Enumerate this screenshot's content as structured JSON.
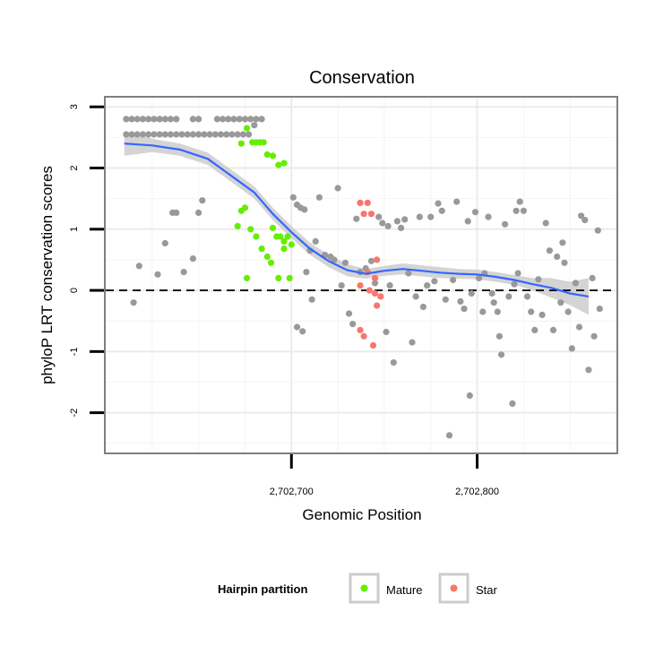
{
  "chart_data": {
    "type": "scatter",
    "title": "Conservation",
    "xlabel": "Genomic Position",
    "ylabel": "phyloP LRT conservation scores",
    "xlim": [
      2702600,
      2702875
    ],
    "ylim": [
      -2.65,
      3.15
    ],
    "xticks": [
      {
        "value": 2702700,
        "label": "2,702,700"
      },
      {
        "value": 2702800,
        "label": "2,702,800"
      }
    ],
    "yticks": [
      {
        "value": -2,
        "label": "-2"
      },
      {
        "value": -1,
        "label": "-1"
      },
      {
        "value": 0,
        "label": "0"
      },
      {
        "value": 1,
        "label": "1"
      },
      {
        "value": 2,
        "label": "2"
      },
      {
        "value": 3,
        "label": "3"
      }
    ],
    "reference_line": {
      "y": 0,
      "style": "dashed",
      "color": "#000000"
    },
    "grid": true,
    "legend": {
      "title": "Hairpin partition",
      "placement": "bottom",
      "entries": [
        {
          "label": "Mature",
          "color": "#66ee00"
        },
        {
          "label": "Star",
          "color": "#f8766d"
        }
      ]
    },
    "smooth_line": {
      "color": "#3366ff",
      "band_color": "#cccccc",
      "points": [
        [
          2702610,
          2.4
        ],
        [
          2702625,
          2.37
        ],
        [
          2702640,
          2.3
        ],
        [
          2702655,
          2.15
        ],
        [
          2702670,
          1.82
        ],
        [
          2702680,
          1.6
        ],
        [
          2702690,
          1.25
        ],
        [
          2702700,
          0.95
        ],
        [
          2702710,
          0.68
        ],
        [
          2702720,
          0.48
        ],
        [
          2702730,
          0.33
        ],
        [
          2702740,
          0.27
        ],
        [
          2702750,
          0.32
        ],
        [
          2702760,
          0.35
        ],
        [
          2702770,
          0.32
        ],
        [
          2702780,
          0.29
        ],
        [
          2702790,
          0.27
        ],
        [
          2702800,
          0.26
        ],
        [
          2702810,
          0.22
        ],
        [
          2702820,
          0.17
        ],
        [
          2702830,
          0.1
        ],
        [
          2702840,
          0.04
        ],
        [
          2702850,
          -0.05
        ],
        [
          2702860,
          -0.1
        ]
      ],
      "band_upper": [
        2.6,
        2.48,
        2.4,
        2.25,
        1.92,
        1.7,
        1.35,
        1.05,
        0.78,
        0.58,
        0.43,
        0.35,
        0.4,
        0.44,
        0.41,
        0.38,
        0.35,
        0.34,
        0.3,
        0.25,
        0.2,
        0.2,
        0.14,
        0.2
      ],
      "band_lower": [
        2.2,
        2.26,
        2.2,
        2.05,
        1.72,
        1.5,
        1.15,
        0.85,
        0.58,
        0.38,
        0.23,
        0.19,
        0.24,
        0.26,
        0.23,
        0.2,
        0.19,
        0.18,
        0.14,
        0.09,
        0.0,
        -0.12,
        -0.24,
        -0.4
      ]
    },
    "series": [
      {
        "name": "",
        "color": "#999999",
        "points": [
          [
            2702611,
            2.8
          ],
          [
            2702614,
            2.8
          ],
          [
            2702617,
            2.8
          ],
          [
            2702620,
            2.8
          ],
          [
            2702623,
            2.8
          ],
          [
            2702626,
            2.8
          ],
          [
            2702629,
            2.8
          ],
          [
            2702632,
            2.8
          ],
          [
            2702635,
            2.8
          ],
          [
            2702638,
            2.8
          ],
          [
            2702647,
            2.8
          ],
          [
            2702650,
            2.8
          ],
          [
            2702660,
            2.8
          ],
          [
            2702663,
            2.8
          ],
          [
            2702666,
            2.8
          ],
          [
            2702669,
            2.8
          ],
          [
            2702672,
            2.8
          ],
          [
            2702675,
            2.8
          ],
          [
            2702678,
            2.8
          ],
          [
            2702681,
            2.8
          ],
          [
            2702684,
            2.8
          ],
          [
            2702611,
            2.55
          ],
          [
            2702614,
            2.55
          ],
          [
            2702617,
            2.55
          ],
          [
            2702620,
            2.55
          ],
          [
            2702623,
            2.55
          ],
          [
            2702626,
            2.55
          ],
          [
            2702629,
            2.55
          ],
          [
            2702632,
            2.55
          ],
          [
            2702635,
            2.55
          ],
          [
            2702638,
            2.55
          ],
          [
            2702641,
            2.55
          ],
          [
            2702644,
            2.55
          ],
          [
            2702647,
            2.55
          ],
          [
            2702650,
            2.55
          ],
          [
            2702653,
            2.55
          ],
          [
            2702656,
            2.55
          ],
          [
            2702659,
            2.55
          ],
          [
            2702662,
            2.55
          ],
          [
            2702665,
            2.55
          ],
          [
            2702668,
            2.55
          ],
          [
            2702671,
            2.55
          ],
          [
            2702674,
            2.55
          ],
          [
            2702677,
            2.55
          ],
          [
            2702680,
            2.7
          ],
          [
            2702615,
            -0.2
          ],
          [
            2702618,
            0.4
          ],
          [
            2702628,
            0.26
          ],
          [
            2702632,
            0.77
          ],
          [
            2702636,
            1.27
          ],
          [
            2702638,
            1.27
          ],
          [
            2702642,
            0.3
          ],
          [
            2702647,
            0.52
          ],
          [
            2702650,
            1.27
          ],
          [
            2702652,
            1.47
          ],
          [
            2702701,
            1.52
          ],
          [
            2702703,
            1.4
          ],
          [
            2702705,
            1.35
          ],
          [
            2702707,
            1.32
          ],
          [
            2702708,
            0.3
          ],
          [
            2702710,
            0.65
          ],
          [
            2702711,
            -0.15
          ],
          [
            2702703,
            -0.6
          ],
          [
            2702706,
            -0.67
          ],
          [
            2702713,
            0.8
          ],
          [
            2702715,
            1.52
          ],
          [
            2702718,
            0.58
          ],
          [
            2702721,
            0.55
          ],
          [
            2702723,
            0.5
          ],
          [
            2702725,
            1.67
          ],
          [
            2702727,
            0.08
          ],
          [
            2702729,
            0.45
          ],
          [
            2702731,
            -0.38
          ],
          [
            2702733,
            -0.55
          ],
          [
            2702735,
            1.17
          ],
          [
            2702737,
            0.3
          ],
          [
            2702740,
            0.36
          ],
          [
            2702743,
            0.48
          ],
          [
            2702745,
            0.12
          ],
          [
            2702747,
            1.2
          ],
          [
            2702749,
            1.1
          ],
          [
            2702751,
            -0.68
          ],
          [
            2702752,
            1.05
          ],
          [
            2702753,
            0.08
          ],
          [
            2702755,
            -1.18
          ],
          [
            2702757,
            1.13
          ],
          [
            2702759,
            1.02
          ],
          [
            2702761,
            1.16
          ],
          [
            2702763,
            0.28
          ],
          [
            2702765,
            -0.85
          ],
          [
            2702767,
            -0.1
          ],
          [
            2702769,
            1.2
          ],
          [
            2702771,
            -0.27
          ],
          [
            2702773,
            0.08
          ],
          [
            2702775,
            1.2
          ],
          [
            2702777,
            0.15
          ],
          [
            2702779,
            1.42
          ],
          [
            2702781,
            1.3
          ],
          [
            2702783,
            -0.15
          ],
          [
            2702785,
            -2.37
          ],
          [
            2702787,
            0.17
          ],
          [
            2702789,
            1.45
          ],
          [
            2702791,
            -0.18
          ],
          [
            2702793,
            -0.3
          ],
          [
            2702795,
            1.13
          ],
          [
            2702796,
            -1.72
          ],
          [
            2702797,
            -0.05
          ],
          [
            2702799,
            1.28
          ],
          [
            2702801,
            0.2
          ],
          [
            2702803,
            -0.35
          ],
          [
            2702804,
            0.28
          ],
          [
            2702806,
            1.2
          ],
          [
            2702808,
            -0.05
          ],
          [
            2702809,
            -0.2
          ],
          [
            2702811,
            -0.35
          ],
          [
            2702812,
            -0.75
          ],
          [
            2702813,
            -1.05
          ],
          [
            2702815,
            1.08
          ],
          [
            2702817,
            -0.1
          ],
          [
            2702819,
            -1.85
          ],
          [
            2702820,
            0.1
          ],
          [
            2702821,
            1.3
          ],
          [
            2702822,
            0.28
          ],
          [
            2702823,
            1.45
          ],
          [
            2702825,
            1.3
          ],
          [
            2702827,
            -0.1
          ],
          [
            2702829,
            -0.35
          ],
          [
            2702831,
            -0.65
          ],
          [
            2702833,
            0.18
          ],
          [
            2702835,
            -0.4
          ],
          [
            2702837,
            1.1
          ],
          [
            2702839,
            0.65
          ],
          [
            2702841,
            -0.65
          ],
          [
            2702843,
            0.55
          ],
          [
            2702845,
            -0.2
          ],
          [
            2702846,
            0.78
          ],
          [
            2702847,
            0.45
          ],
          [
            2702849,
            -0.35
          ],
          [
            2702851,
            -0.95
          ],
          [
            2702853,
            0.12
          ],
          [
            2702855,
            -0.6
          ],
          [
            2702856,
            1.22
          ],
          [
            2702858,
            1.15
          ],
          [
            2702860,
            -1.3
          ],
          [
            2702862,
            0.2
          ],
          [
            2702863,
            -0.75
          ],
          [
            2702865,
            0.98
          ],
          [
            2702866,
            -0.3
          ]
        ]
      },
      {
        "name": "Mature",
        "color": "#66ee00",
        "points": [
          [
            2702673,
            2.4
          ],
          [
            2702676,
            2.65
          ],
          [
            2702679,
            2.42
          ],
          [
            2702681,
            2.42
          ],
          [
            2702683,
            2.42
          ],
          [
            2702685,
            2.42
          ],
          [
            2702687,
            2.22
          ],
          [
            2702690,
            2.2
          ],
          [
            2702693,
            2.05
          ],
          [
            2702696,
            2.08
          ],
          [
            2702673,
            1.3
          ],
          [
            2702675,
            1.35
          ],
          [
            2702671,
            1.05
          ],
          [
            2702678,
            1.0
          ],
          [
            2702681,
            0.88
          ],
          [
            2702684,
            0.68
          ],
          [
            2702687,
            0.55
          ],
          [
            2702690,
            1.02
          ],
          [
            2702692,
            0.88
          ],
          [
            2702694,
            0.88
          ],
          [
            2702696,
            0.8
          ],
          [
            2702698,
            0.88
          ],
          [
            2702700,
            0.75
          ],
          [
            2702689,
            0.45
          ],
          [
            2702676,
            0.2
          ],
          [
            2702693,
            0.2
          ],
          [
            2702699,
            0.2
          ],
          [
            2702696,
            0.68
          ]
        ]
      },
      {
        "name": "Star",
        "color": "#f8766d",
        "points": [
          [
            2702737,
            1.43
          ],
          [
            2702741,
            1.43
          ],
          [
            2702739,
            1.25
          ],
          [
            2702743,
            1.25
          ],
          [
            2702746,
            0.5
          ],
          [
            2702741,
            0.3
          ],
          [
            2702745,
            0.2
          ],
          [
            2702737,
            0.08
          ],
          [
            2702742,
            0.0
          ],
          [
            2702745,
            -0.05
          ],
          [
            2702748,
            -0.1
          ],
          [
            2702746,
            -0.25
          ],
          [
            2702737,
            -0.65
          ],
          [
            2702739,
            -0.75
          ],
          [
            2702744,
            -0.9
          ]
        ]
      }
    ]
  }
}
